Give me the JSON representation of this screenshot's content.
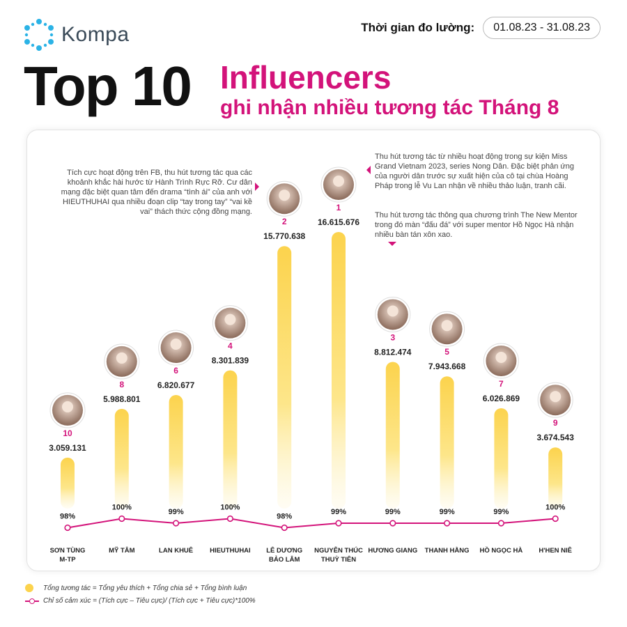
{
  "brand": {
    "name": "Kompa",
    "logo_icon": "network-nodes-icon",
    "color": "#2bb3e6"
  },
  "period": {
    "label": "Thời gian đo lường:",
    "value": "01.08.23 - 31.08.23"
  },
  "title": {
    "main": "Top 10",
    "highlight": "Influencers",
    "sub": "ghi nhận nhiều tương tác Tháng 8"
  },
  "notes": {
    "left": "Tích cực hoạt động trên FB, thu hút tương tác qua các khoảnh khắc hài hước từ Hành Trình Rực Rỡ. Cư dân mạng đặc biệt quan tâm đến drama “tình ái” của anh với HIEUTHUHAI qua nhiều đoạn clip “tay trong tay” “vai kề vai” thách thức cộng đồng mạng.",
    "right_top": "Thu hút tương tác từ nhiều hoạt động trong sự kiện Miss Grand Vietnam 2023, series Nong Dân. Đặc biệt phản ứng của người dân trước sự xuất hiện của cô tại chùa Hoàng Pháp trong lễ Vu Lan nhận về nhiều thảo luận, tranh cãi.",
    "right_bottom": "Thu hút tương tác thông qua chương trình The New Mentor trong đó màn “đấu đá” với super mentor Hồ Ngọc Hà nhận nhiều bàn tán xôn xao."
  },
  "legend": {
    "bar": "Tổng tương tác = Tổng yêu thích + Tổng chia sẻ + Tổng bình luận",
    "line": "Chỉ số cảm xúc = (Tích cực – Tiêu cực)/ (Tích cực + Tiêu cực)*100%"
  },
  "colors": {
    "accent": "#d3137a",
    "bar": "#fcd34d",
    "avatar_ring": "#d3137a"
  },
  "chart_data": {
    "type": "bar",
    "categories": [
      "SƠN TÙNG M-TP",
      "MỸ TÂM",
      "LAN KHUÊ",
      "HIEUTHUHAI",
      "LÊ DƯƠNG BẢO LÂM",
      "NGUYỄN THÚC THUỲ TIÊN",
      "HƯƠNG GIANG",
      "THANH HẰNG",
      "HỒ NGỌC HÀ",
      "H'HEN NIÊ"
    ],
    "category_lines": [
      [
        "SƠN TÙNG",
        "M-TP"
      ],
      [
        "MỸ TÂM"
      ],
      [
        "LAN KHUÊ"
      ],
      [
        "HIEUTHUHAI"
      ],
      [
        "LÊ DƯƠNG",
        "BẢO LÂM"
      ],
      [
        "NGUYỄN THÚC",
        "THUỲ TIÊN"
      ],
      [
        "HƯƠNG GIANG"
      ],
      [
        "THANH HẰNG"
      ],
      [
        "HỒ NGỌC HÀ"
      ],
      [
        "H'HEN NIÊ"
      ]
    ],
    "ranks": [
      "10",
      "8",
      "6",
      "4",
      "2",
      "1",
      "3",
      "5",
      "7",
      "9"
    ],
    "values": [
      3059131,
      5988801,
      6820677,
      8301839,
      15770638,
      16615676,
      8812474,
      7943668,
      6026869,
      3674543
    ],
    "value_labels": [
      "3.059.131",
      "5.988.801",
      "6.820.677",
      "8.301.839",
      "15.770.638",
      "16.615.676",
      "8.812.474",
      "7.943.668",
      "6.026.869",
      "3.674.543"
    ],
    "sentiment": [
      98,
      100,
      99,
      100,
      98,
      99,
      99,
      99,
      99,
      100
    ],
    "sentiment_labels": [
      "98%",
      "100%",
      "99%",
      "100%",
      "98%",
      "99%",
      "99%",
      "99%",
      "99%",
      "100%"
    ],
    "series": [
      {
        "name": "Tổng tương tác",
        "type": "bar"
      },
      {
        "name": "Chỉ số cảm xúc",
        "type": "line"
      }
    ],
    "grid": false
  }
}
